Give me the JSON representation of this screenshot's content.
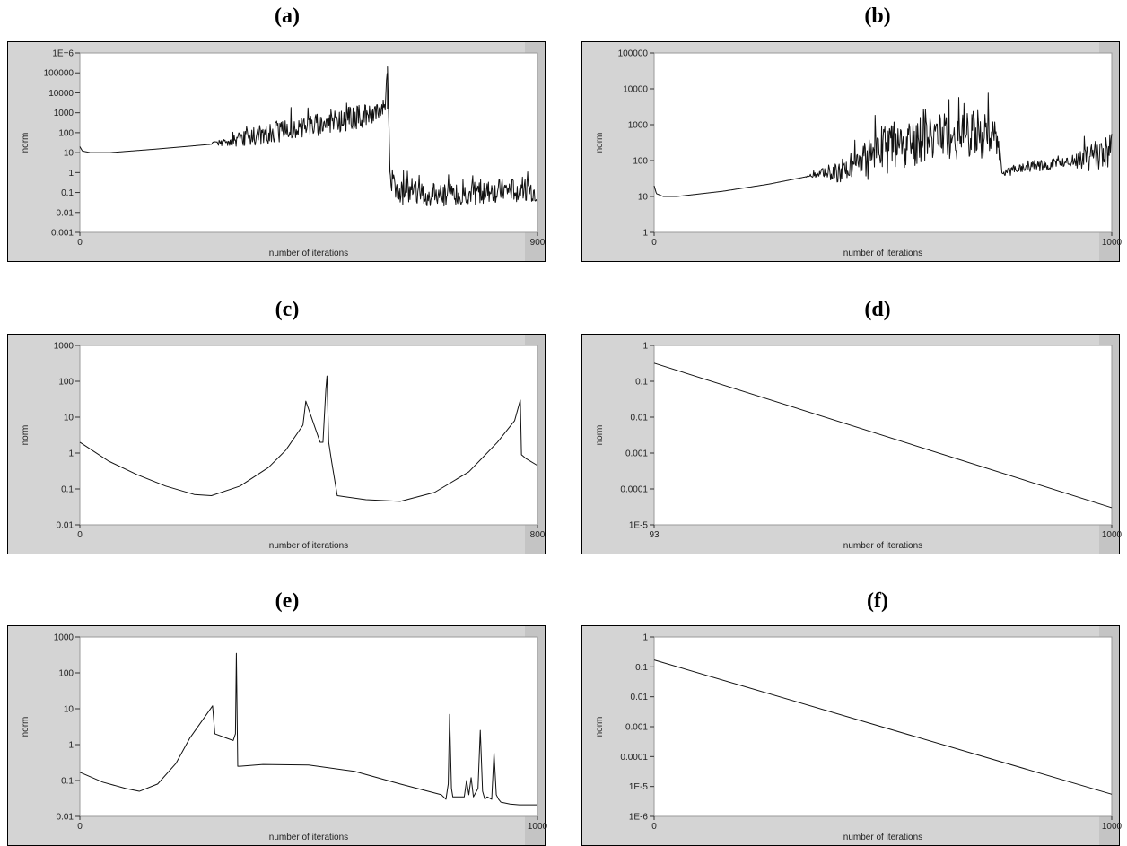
{
  "chart_data": [
    {
      "panel_label": "(a)",
      "type": "line",
      "xlabel": "number of iterations",
      "ylabel": "norm",
      "xlim": [
        0,
        900
      ],
      "ylim": [
        0.001,
        1000000
      ],
      "log_y": true,
      "x_ticks": [
        "0",
        "900"
      ],
      "y_ticks": [
        "0.001",
        "0.01",
        "0.1",
        "1",
        "10",
        "100",
        "1000",
        "10000",
        "100000",
        "1E+6"
      ],
      "grid": false,
      "series": [
        {
          "x": [
            0,
            5,
            20,
            60,
            150,
            250,
            300,
            360,
            420,
            480,
            560,
            600,
            605,
            610,
            620,
            700,
            800,
            880,
            900
          ],
          "values": [
            20,
            12,
            10,
            10,
            15,
            25,
            40,
            80,
            150,
            300,
            700,
            1500,
            200000,
            1,
            0.1,
            0.08,
            0.1,
            0.15,
            0.1
          ],
          "noise": [
            0,
            0,
            0,
            0,
            0,
            0,
            0.3,
            0.5,
            0.6,
            0.6,
            0.6,
            0.5,
            0,
            0.6,
            0.6,
            0.6,
            0.6,
            0.6,
            0.6
          ]
        }
      ]
    },
    {
      "panel_label": "(b)",
      "type": "line",
      "xlabel": "number of iterations",
      "ylabel": "norm",
      "xlim": [
        0,
        1000
      ],
      "ylim": [
        1,
        100000
      ],
      "log_y": true,
      "x_ticks": [
        "0",
        "1000"
      ],
      "y_ticks": [
        "1",
        "10",
        "100",
        "1000",
        "10000",
        "100000"
      ],
      "grid": false,
      "series": [
        {
          "x": [
            0,
            5,
            20,
            50,
            150,
            250,
            330,
            400,
            450,
            500,
            550,
            600,
            700,
            750,
            760,
            770,
            800,
            900,
            950,
            1000
          ],
          "values": [
            20,
            12,
            10,
            10,
            14,
            22,
            35,
            50,
            80,
            200,
            300,
            400,
            500,
            600,
            45,
            50,
            60,
            90,
            120,
            200
          ],
          "noise": [
            0,
            0,
            0,
            0,
            0,
            0,
            0,
            0.3,
            0.5,
            0.7,
            0.7,
            0.7,
            0.7,
            0.6,
            0,
            0.15,
            0.15,
            0.15,
            0.4,
            0.5
          ]
        }
      ]
    },
    {
      "panel_label": "(c)",
      "type": "line",
      "xlabel": "number of iterations",
      "ylabel": "norm",
      "xlim": [
        0,
        800
      ],
      "ylim": [
        0.01,
        1000
      ],
      "log_y": true,
      "x_ticks": [
        "0",
        "800"
      ],
      "y_ticks": [
        "0.01",
        "0.1",
        "1",
        "10",
        "100",
        "1000"
      ],
      "grid": false,
      "series": [
        {
          "x": [
            0,
            50,
            100,
            150,
            200,
            230,
            280,
            330,
            360,
            390,
            395,
            420,
            425,
            430,
            432,
            435,
            440,
            450,
            500,
            560,
            620,
            680,
            730,
            760,
            770,
            772,
            780,
            800
          ],
          "values": [
            2,
            0.6,
            0.25,
            0.12,
            0.07,
            0.065,
            0.12,
            0.4,
            1.2,
            6,
            28,
            2,
            2,
            60,
            140,
            2,
            0.6,
            0.065,
            0.05,
            0.045,
            0.08,
            0.3,
            2,
            8,
            30,
            0.9,
            0.7,
            0.45
          ],
          "noise": []
        }
      ]
    },
    {
      "panel_label": "(d)",
      "type": "line",
      "xlabel": "number of iterations",
      "ylabel": "norm",
      "xlim": [
        93,
        1000
      ],
      "ylim": [
        1e-05,
        1
      ],
      "log_y": true,
      "x_ticks": [
        "93",
        "1000"
      ],
      "y_ticks": [
        "1E-5",
        "0.0001",
        "0.001",
        "0.01",
        "0.1",
        "1"
      ],
      "grid": false,
      "series": [
        {
          "x": [
            93,
            1000
          ],
          "values": [
            0.32,
            3e-05
          ],
          "noise": []
        }
      ]
    },
    {
      "panel_label": "(e)",
      "type": "line",
      "xlabel": "number of iterations",
      "ylabel": "norm",
      "xlim": [
        0,
        1000
      ],
      "ylim": [
        0.01,
        1000
      ],
      "log_y": true,
      "x_ticks": [
        "0",
        "1000"
      ],
      "y_ticks": [
        "0.01",
        "0.1",
        "1",
        "10",
        "100",
        "1000"
      ],
      "grid": false,
      "series": [
        {
          "x": [
            0,
            50,
            100,
            130,
            170,
            210,
            240,
            290,
            295,
            335,
            340,
            342,
            345,
            350,
            400,
            500,
            600,
            700,
            790,
            800,
            805,
            808,
            812,
            815,
            840,
            845,
            850,
            855,
            860,
            870,
            875,
            880,
            885,
            890,
            900,
            905,
            910,
            915,
            920,
            940,
            960,
            1000
          ],
          "values": [
            0.17,
            0.09,
            0.06,
            0.05,
            0.08,
            0.3,
            1.5,
            12,
            2,
            1.3,
            2,
            350,
            0.25,
            0.25,
            0.28,
            0.27,
            0.18,
            0.08,
            0.04,
            0.03,
            0.08,
            7,
            0.06,
            0.035,
            0.035,
            0.1,
            0.04,
            0.12,
            0.035,
            0.06,
            2.5,
            0.05,
            0.03,
            0.035,
            0.03,
            0.6,
            0.04,
            0.03,
            0.025,
            0.022,
            0.021,
            0.021
          ],
          "noise": []
        }
      ]
    },
    {
      "panel_label": "(f)",
      "type": "line",
      "xlabel": "number of iterations",
      "ylabel": "norm",
      "xlim": [
        0,
        1000
      ],
      "ylim": [
        1e-06,
        1
      ],
      "log_y": true,
      "x_ticks": [
        "0",
        "1000"
      ],
      "y_ticks": [
        "1E-6",
        "1E-5",
        "0.0001",
        "0.001",
        "0.01",
        "0.1",
        "1"
      ],
      "grid": false,
      "series": [
        {
          "x": [
            0,
            1000
          ],
          "values": [
            0.17,
            5.5e-06
          ],
          "noise": []
        }
      ]
    }
  ]
}
